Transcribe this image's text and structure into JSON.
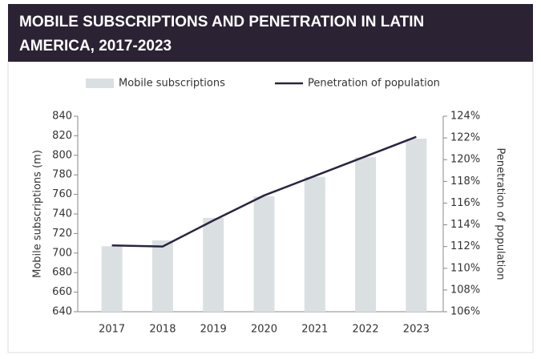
{
  "chart_data": {
    "type": "bar-line",
    "title_lines": [
      "MOBILE SUBSCRIPTIONS AND PENETRATION IN LATIN",
      "AMERICA, 2017-2023"
    ],
    "y_label": "Mobile subscriptions (m)",
    "y2_label": "Penetration of population",
    "categories": [
      "2017",
      "2018",
      "2019",
      "2020",
      "2021",
      "2022",
      "2023"
    ],
    "series": [
      {
        "name": "Mobile subscriptions",
        "type": "bar",
        "color": "#dadfe2",
        "axis": "y",
        "values": [
          707,
          713,
          736,
          758,
          778,
          798,
          817
        ]
      },
      {
        "name": "Penetration of population",
        "type": "line",
        "color": "#2b2440",
        "axis": "y2",
        "values": [
          112.1,
          112.0,
          114.4,
          116.7,
          118.5,
          120.3,
          122.1
        ]
      }
    ],
    "ylim": [
      640,
      840
    ],
    "yticks": [
      640,
      660,
      680,
      700,
      720,
      740,
      760,
      780,
      800,
      820,
      840
    ],
    "y2lim": [
      106,
      124
    ],
    "y2ticks": [
      {
        "value": 106,
        "label": "106%"
      },
      {
        "value": 108,
        "label": "108%"
      },
      {
        "value": 110,
        "label": "110%"
      },
      {
        "value": 112,
        "label": "112%"
      },
      {
        "value": 114,
        "label": "114%"
      },
      {
        "value": 116,
        "label": "116%"
      },
      {
        "value": 118,
        "label": "118%"
      },
      {
        "value": 120,
        "label": "120%"
      },
      {
        "value": 122,
        "label": "122%"
      },
      {
        "value": 124,
        "label": "124%"
      }
    ]
  }
}
